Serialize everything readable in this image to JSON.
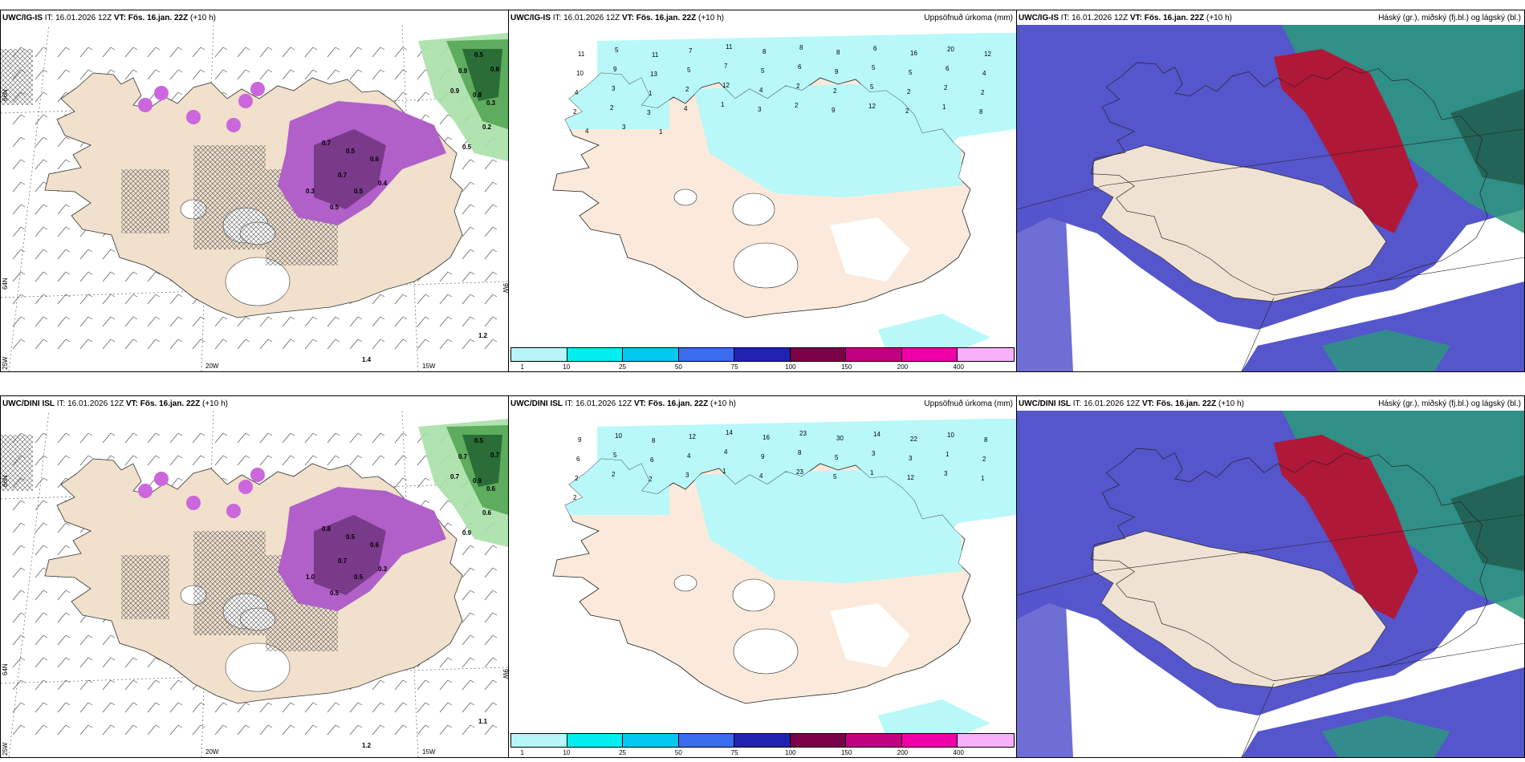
{
  "panels": [
    {
      "id": "p1",
      "model": "UWC/IG-IS",
      "it_label": "IT:",
      "it": "16.01.2026 12Z",
      "vt_label": "VT:",
      "vt": "Fös. 16.jan. 22Z",
      "lead": "(+10 h)",
      "right_title": ""
    },
    {
      "id": "p2",
      "model": "UWC/IG-IS",
      "it_label": "IT:",
      "it": "16.01.2026 12Z",
      "vt_label": "VT:",
      "vt": "Fös. 16.jan. 22Z",
      "lead": "(+10 h)",
      "right_title": "Uppsöfnuð úrkoma (mm)"
    },
    {
      "id": "p3",
      "model": "UWC/IG-IS",
      "it_label": "IT:",
      "it": "16.01.2026 12Z",
      "vt_label": "VT:",
      "vt": "Fös. 16.jan. 22Z",
      "lead": "(+10 h)",
      "right_title": "Háský (gr.), miðský (fj.bl.) og lágský (bl.)"
    },
    {
      "id": "p4",
      "model": "UWC/DINI ISL",
      "it_label": "IT:",
      "it": "16.01.2026 12Z",
      "vt_label": "VT:",
      "vt": "Fös. 16.jan. 22Z",
      "lead": "(+10 h)",
      "right_title": ""
    },
    {
      "id": "p5",
      "model": "UWC/DINI ISL",
      "it_label": "IT:",
      "it": "16.01.2026 12Z",
      "vt_label": "VT:",
      "vt": "Fös. 16.jan. 22Z",
      "lead": "(+10 h)",
      "right_title": "Uppsöfnuð úrkoma (mm)"
    },
    {
      "id": "p6",
      "model": "UWC/DINI ISL",
      "it_label": "IT:",
      "it": "16.01.2026 12Z",
      "vt_label": "VT:",
      "vt": "Fös. 16.jan. 22Z",
      "lead": "(+10 h)",
      "right_title": "Háský (gr.), miðský (fj.bl.) og lágský (bl.)"
    }
  ],
  "axis_labels": {
    "lat66": "66N",
    "lat64": "64N",
    "lon25": "25W",
    "lon20": "20W",
    "lon15": "15W",
    "lon9": "9W"
  },
  "colorbar": {
    "ticks": [
      "1",
      "10",
      "25",
      "50",
      "75",
      "100",
      "150",
      "200",
      "400"
    ],
    "colors": [
      "#b8f5f8",
      "#00eef0",
      "#00c8f0",
      "#3a6cf0",
      "#2222b0",
      "#7a0048",
      "#c00080",
      "#f000a8",
      "#f8b0f8"
    ]
  },
  "colors": {
    "land": "#f0e0cc",
    "sea_precip": "#b8f8f8",
    "snow_purple": "#cc66dd",
    "high_cloud": "#2a9a7a",
    "mid_cloud": "#b01838",
    "low_cloud": "#5555cc"
  },
  "precip_labels_top": [
    "11",
    "5",
    "11",
    "7",
    "11",
    "8",
    "8",
    "8",
    "6",
    "16",
    "20",
    "12",
    "10",
    "9",
    "13",
    "5",
    "7",
    "5",
    "6",
    "9",
    "5",
    "5",
    "6",
    "4",
    "4",
    "3",
    "1",
    "2",
    "12",
    "4",
    "2",
    "2",
    "5",
    "2",
    "2",
    "2",
    "2",
    "2",
    "3",
    "4",
    "1",
    "3",
    "2",
    "9",
    "12",
    "2",
    "1",
    "8",
    "4",
    "3",
    "1"
  ],
  "precip_labels_bottom": [
    "9",
    "10",
    "8",
    "12",
    "14",
    "16",
    "23",
    "30",
    "14",
    "22",
    "10",
    "8",
    "6",
    "5",
    "6",
    "4",
    "4",
    "9",
    "8",
    "5",
    "3",
    "3",
    "1",
    "2",
    "2",
    "2",
    "2",
    "3",
    "1",
    "4",
    "23",
    "5",
    "1",
    "12",
    "3",
    "1",
    "2"
  ],
  "snow_labels_top": [
    "0.5",
    "0.9",
    "0.6",
    "0.8",
    "0.9",
    "0.3",
    "0.2",
    "0.5",
    "0.7",
    "0.5",
    "0.6",
    "0.7",
    "0.5",
    "0.4",
    "0.3",
    "0.5",
    "1.2",
    "1.4"
  ],
  "snow_labels_bottom": [
    "0.5",
    "0.7",
    "0.7",
    "0.9",
    "0.7",
    "0.6",
    "0.6",
    "0.9",
    "0.8",
    "0.5",
    "0.6",
    "0.7",
    "0.5",
    "0.3",
    "1.0",
    "0.5",
    "1.1",
    "1.2"
  ]
}
